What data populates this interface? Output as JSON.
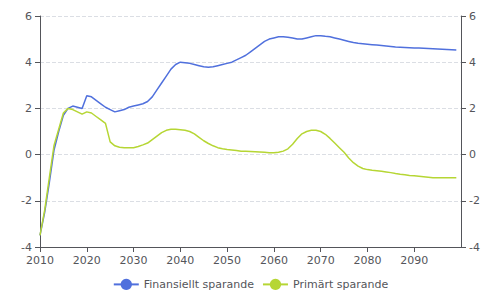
{
  "chart_data": {
    "type": "line",
    "grid": true,
    "legend": "bottom",
    "xlim": [
      2010,
      2100
    ],
    "xticks": [
      2010,
      2020,
      2030,
      2040,
      2050,
      2060,
      2070,
      2080,
      2090
    ],
    "ylim": [
      -4,
      6
    ],
    "yticks": [
      -4,
      -2,
      0,
      2,
      4,
      6
    ],
    "y2lim": [
      -4,
      6
    ],
    "y2ticks": [
      -4,
      -2,
      0,
      2,
      4,
      6
    ],
    "x": [
      2010,
      2011,
      2012,
      2013,
      2014,
      2015,
      2016,
      2017,
      2018,
      2019,
      2020,
      2021,
      2022,
      2023,
      2024,
      2025,
      2026,
      2027,
      2028,
      2029,
      2030,
      2031,
      2032,
      2033,
      2034,
      2035,
      2036,
      2037,
      2038,
      2039,
      2040,
      2041,
      2042,
      2043,
      2044,
      2045,
      2046,
      2047,
      2048,
      2049,
      2050,
      2051,
      2052,
      2053,
      2054,
      2055,
      2056,
      2057,
      2058,
      2059,
      2060,
      2061,
      2062,
      2063,
      2064,
      2065,
      2066,
      2067,
      2068,
      2069,
      2070,
      2071,
      2072,
      2073,
      2074,
      2075,
      2076,
      2077,
      2078,
      2079,
      2080,
      2081,
      2082,
      2083,
      2084,
      2085,
      2086,
      2087,
      2088,
      2089,
      2090,
      2091,
      2092,
      2093,
      2094,
      2095,
      2096,
      2097,
      2098,
      2099
    ],
    "series": [
      {
        "name": "Finansiellt sparande",
        "values": [
          -3.5,
          -2.5,
          -1.2,
          0.2,
          1.0,
          1.7,
          2.0,
          2.1,
          2.05,
          2.0,
          2.55,
          2.5,
          2.35,
          2.2,
          2.05,
          1.95,
          1.85,
          1.9,
          1.95,
          2.05,
          2.1,
          2.15,
          2.2,
          2.3,
          2.5,
          2.8,
          3.1,
          3.4,
          3.7,
          3.9,
          4.0,
          3.98,
          3.95,
          3.9,
          3.85,
          3.8,
          3.78,
          3.8,
          3.85,
          3.9,
          3.95,
          4.0,
          4.1,
          4.2,
          4.3,
          4.45,
          4.6,
          4.75,
          4.9,
          5.0,
          5.05,
          5.1,
          5.1,
          5.08,
          5.05,
          5.0,
          5.0,
          5.05,
          5.1,
          5.15,
          5.15,
          5.12,
          5.1,
          5.05,
          5.0,
          4.95,
          4.9,
          4.85,
          4.82,
          4.8,
          4.78,
          4.76,
          4.74,
          4.72,
          4.7,
          4.68,
          4.66,
          4.65,
          4.64,
          4.63,
          4.62,
          4.61,
          4.6,
          4.59,
          4.58,
          4.57,
          4.56,
          4.55,
          4.54,
          4.53
        ]
      },
      {
        "name": "Primärt sparande",
        "values": [
          -3.5,
          -2.4,
          -1.0,
          0.4,
          1.1,
          1.8,
          2.0,
          1.95,
          1.85,
          1.75,
          1.85,
          1.8,
          1.65,
          1.5,
          1.35,
          0.55,
          0.38,
          0.32,
          0.3,
          0.3,
          0.3,
          0.35,
          0.42,
          0.5,
          0.65,
          0.8,
          0.95,
          1.05,
          1.1,
          1.1,
          1.08,
          1.05,
          1.0,
          0.9,
          0.75,
          0.6,
          0.48,
          0.38,
          0.3,
          0.25,
          0.22,
          0.2,
          0.18,
          0.15,
          0.14,
          0.13,
          0.12,
          0.11,
          0.1,
          0.08,
          0.08,
          0.1,
          0.15,
          0.25,
          0.45,
          0.7,
          0.9,
          1.0,
          1.05,
          1.05,
          1.0,
          0.88,
          0.7,
          0.5,
          0.3,
          0.1,
          -0.15,
          -0.35,
          -0.5,
          -0.6,
          -0.65,
          -0.68,
          -0.7,
          -0.72,
          -0.75,
          -0.78,
          -0.82,
          -0.85,
          -0.87,
          -0.9,
          -0.92,
          -0.94,
          -0.96,
          -0.98,
          -1.0,
          -1.0,
          -1.0,
          -1.0,
          -1.0,
          -1.0
        ]
      }
    ]
  }
}
